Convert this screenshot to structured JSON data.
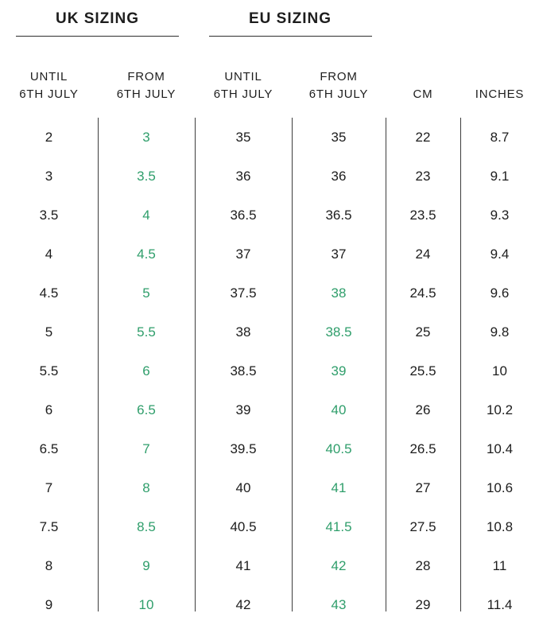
{
  "colors": {
    "text": "#1d1d1d",
    "green": "#2f9e6b",
    "divider": "#3d3d3d",
    "underline": "#2e2e2e",
    "background": "#ffffff"
  },
  "chart_data": {
    "type": "table",
    "section_titles": {
      "uk": "UK SIZING",
      "eu": "EU SIZING"
    },
    "column_headers": [
      {
        "line1": "UNTIL",
        "line2": "6TH JULY"
      },
      {
        "line1": "FROM",
        "line2": "6TH JULY"
      },
      {
        "line1": "UNTIL",
        "line2": "6TH JULY"
      },
      {
        "line1": "FROM",
        "line2": "6TH JULY"
      },
      {
        "line1": "",
        "line2": "CM"
      },
      {
        "line1": "",
        "line2": "INCHES"
      }
    ],
    "column_keys": [
      "uk_until_6th_july",
      "uk_from_6th_july",
      "eu_until_6th_july",
      "eu_from_6th_july",
      "cm",
      "inches"
    ],
    "rows": [
      {
        "cells": [
          "2",
          "3",
          "35",
          "35",
          "22",
          "8.7"
        ],
        "green_cells": [
          1
        ]
      },
      {
        "cells": [
          "3",
          "3.5",
          "36",
          "36",
          "23",
          "9.1"
        ],
        "green_cells": [
          1
        ]
      },
      {
        "cells": [
          "3.5",
          "4",
          "36.5",
          "36.5",
          "23.5",
          "9.3"
        ],
        "green_cells": [
          1
        ]
      },
      {
        "cells": [
          "4",
          "4.5",
          "37",
          "37",
          "24",
          "9.4"
        ],
        "green_cells": [
          1
        ]
      },
      {
        "cells": [
          "4.5",
          "5",
          "37.5",
          "38",
          "24.5",
          "9.6"
        ],
        "green_cells": [
          1,
          3
        ]
      },
      {
        "cells": [
          "5",
          "5.5",
          "38",
          "38.5",
          "25",
          "9.8"
        ],
        "green_cells": [
          1,
          3
        ]
      },
      {
        "cells": [
          "5.5",
          "6",
          "38.5",
          "39",
          "25.5",
          "10"
        ],
        "green_cells": [
          1,
          3
        ]
      },
      {
        "cells": [
          "6",
          "6.5",
          "39",
          "40",
          "26",
          "10.2"
        ],
        "green_cells": [
          1,
          3
        ]
      },
      {
        "cells": [
          "6.5",
          "7",
          "39.5",
          "40.5",
          "26.5",
          "10.4"
        ],
        "green_cells": [
          1,
          3
        ]
      },
      {
        "cells": [
          "7",
          "8",
          "40",
          "41",
          "27",
          "10.6"
        ],
        "green_cells": [
          1,
          3
        ]
      },
      {
        "cells": [
          "7.5",
          "8.5",
          "40.5",
          "41.5",
          "27.5",
          "10.8"
        ],
        "green_cells": [
          1,
          3
        ]
      },
      {
        "cells": [
          "8",
          "9",
          "41",
          "42",
          "28",
          "11"
        ],
        "green_cells": [
          1,
          3
        ]
      },
      {
        "cells": [
          "9",
          "10",
          "42",
          "43",
          "29",
          "11.4"
        ],
        "green_cells": [
          1,
          3
        ]
      }
    ]
  }
}
